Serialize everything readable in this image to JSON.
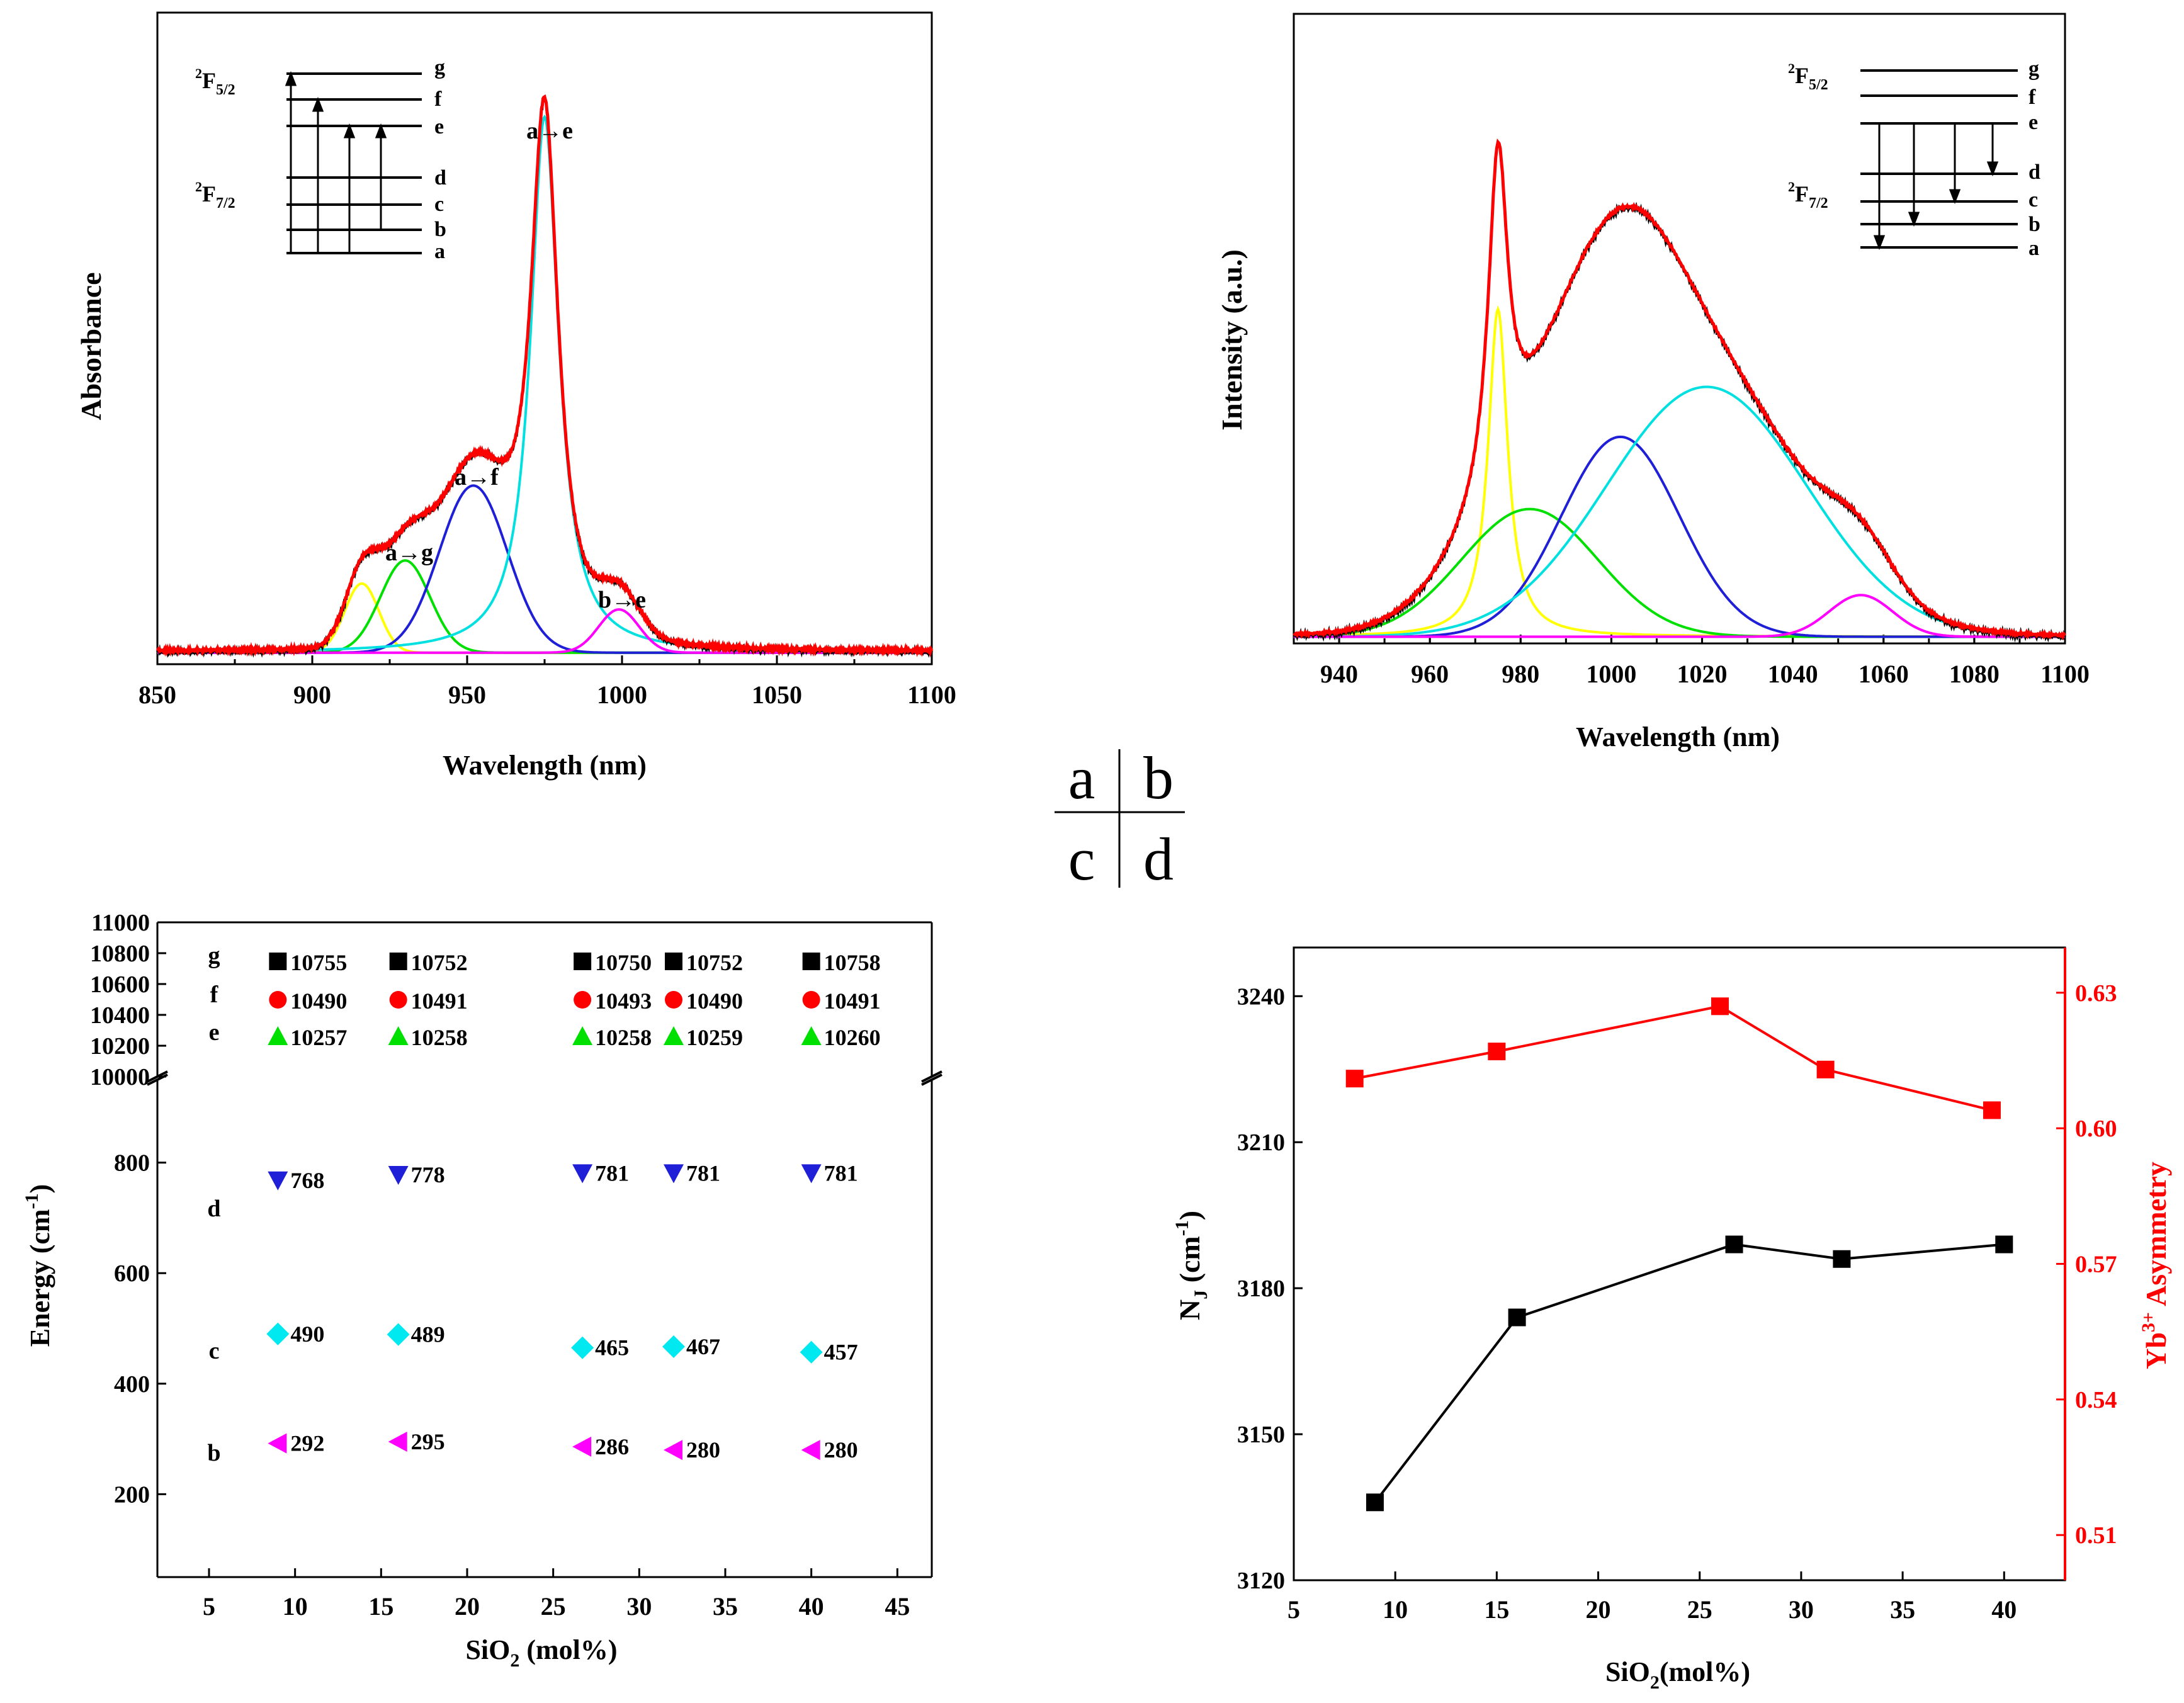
{
  "panel_key": {
    "a": "a",
    "b": "b",
    "c": "c",
    "d": "d"
  },
  "chart_data": [
    {
      "panel": "a",
      "type": "line",
      "xlabel": "Wavelength (nm)",
      "ylabel": "Absorbance",
      "xlim": [
        850,
        1100
      ],
      "ylim": [
        0,
        1
      ],
      "xticks": [
        850,
        900,
        950,
        1000,
        1050,
        1100
      ],
      "xtick_labels": [
        "850",
        "900",
        "950",
        "1000",
        "1050",
        "1100"
      ],
      "annotations": [
        "a→e",
        "a→f",
        "a→g",
        "b→e"
      ],
      "components": [
        {
          "name": "yellow",
          "color": "#ffff00",
          "type": "gauss",
          "center": 916,
          "width": 5.5,
          "height": 0.12
        },
        {
          "name": "green",
          "color": "#00e000",
          "type": "gauss",
          "center": 930,
          "width": 8,
          "height": 0.16
        },
        {
          "name": "blue",
          "color": "#1f1fd8",
          "type": "gauss",
          "center": 952,
          "width": 11,
          "height": 0.29
        },
        {
          "name": "cyan",
          "color": "#00e0e0",
          "type": "lorentz",
          "center": 975,
          "width": 5.5,
          "height": 0.93
        },
        {
          "name": "magenta",
          "color": "#ff00ff",
          "type": "gauss",
          "center": 999,
          "width": 6.5,
          "height": 0.075
        }
      ],
      "series": [
        {
          "name": "measured",
          "color": "#000000"
        },
        {
          "name": "fit",
          "color": "#ff0000"
        }
      ],
      "inset": {
        "upper_term": "2F5/2",
        "lower_term": "2F7/2",
        "levels": [
          "g",
          "f",
          "e",
          "d",
          "c",
          "b",
          "a"
        ],
        "transitions": [
          "a→g",
          "a→f",
          "a→e",
          "b→e"
        ]
      }
    },
    {
      "panel": "b",
      "type": "line",
      "xlabel": "Wavelength (nm)",
      "ylabel": "Intensity (a.u.)",
      "xlim": [
        930,
        1100
      ],
      "ylim": [
        0,
        1
      ],
      "xticks": [
        940,
        960,
        980,
        1000,
        1020,
        1040,
        1060,
        1080,
        1100
      ],
      "xtick_labels": [
        "940",
        "960",
        "980",
        "1000",
        "1020",
        "1040",
        "1060",
        "1080",
        "1100"
      ],
      "components": [
        {
          "name": "yellow",
          "color": "#ffff00",
          "type": "lorentz",
          "center": 975,
          "width": 2.6,
          "height": 0.59
        },
        {
          "name": "green",
          "color": "#00e000",
          "type": "gauss",
          "center": 982,
          "width": 15,
          "height": 0.23
        },
        {
          "name": "blue",
          "color": "#1f1fd8",
          "type": "gauss",
          "center": 1002,
          "width": 13,
          "height": 0.36
        },
        {
          "name": "cyan",
          "color": "#00e0e0",
          "type": "gauss",
          "center": 1021,
          "width": 22,
          "height": 0.45
        },
        {
          "name": "magenta",
          "color": "#ff00ff",
          "type": "gauss",
          "center": 1055,
          "width": 7,
          "height": 0.075
        }
      ],
      "series": [
        {
          "name": "measured",
          "color": "#000000"
        },
        {
          "name": "fit",
          "color": "#ff0000"
        }
      ],
      "inset": {
        "upper_term": "2F5/2",
        "lower_term": "2F7/2",
        "levels": [
          "g",
          "f",
          "e",
          "d",
          "c",
          "b",
          "a"
        ],
        "transitions": [
          "e→a",
          "e→b",
          "e→c",
          "e→d"
        ]
      }
    },
    {
      "panel": "c",
      "type": "scatter",
      "xlabel": "SiO2 (mol%)",
      "ylabel": "Energy (cm-1)",
      "xlim": [
        2,
        47
      ],
      "xticks": [
        5,
        10,
        15,
        20,
        25,
        30,
        35,
        40,
        45
      ],
      "xtick_labels": [
        "5",
        "10",
        "15",
        "20",
        "25",
        "30",
        "35",
        "40",
        "45"
      ],
      "upper_ylim": [
        10000,
        11000
      ],
      "upper_yticks": [
        "10000",
        "10200",
        "10400",
        "10600",
        "10800",
        "11000"
      ],
      "lower_ylim": [
        50,
        950
      ],
      "lower_yticks": [
        "200",
        "400",
        "600",
        "800"
      ],
      "x": [
        9,
        16,
        26.7,
        32,
        40
      ],
      "series": [
        {
          "level": "g",
          "marker": "square",
          "color": "#000000",
          "values": [
            10755,
            10752,
            10750,
            10752,
            10758
          ],
          "labels": [
            "10755",
            "10752",
            "10750",
            "10752",
            "10758"
          ]
        },
        {
          "level": "f",
          "marker": "circle",
          "color": "#ff0000",
          "values": [
            10490,
            10491,
            10493,
            10490,
            10491
          ],
          "labels": [
            "10490",
            "10491",
            "10493",
            "10490",
            "10491"
          ]
        },
        {
          "level": "e",
          "marker": "triangle-up",
          "color": "#00e000",
          "values": [
            10257,
            10258,
            10258,
            10259,
            10260
          ],
          "labels": [
            "10257",
            "10258",
            "10258",
            "10259",
            "10260"
          ]
        },
        {
          "level": "d",
          "marker": "triangle-down",
          "color": "#1f1fd8",
          "values": [
            768,
            778,
            781,
            781,
            781
          ],
          "labels": [
            "768",
            "778",
            "781",
            "781",
            "781"
          ]
        },
        {
          "level": "c",
          "marker": "diamond",
          "color": "#00e8f0",
          "values": [
            490,
            489,
            465,
            467,
            457
          ],
          "labels": [
            "490",
            "489",
            "465",
            "467",
            "457"
          ]
        },
        {
          "level": "b",
          "marker": "triangle-left",
          "color": "#ff00ff",
          "values": [
            292,
            295,
            286,
            280,
            280
          ],
          "labels": [
            "292",
            "295",
            "286",
            "280",
            "280"
          ]
        }
      ]
    },
    {
      "panel": "d",
      "type": "line",
      "xlabel": "SiO2 (mol%)",
      "ylabel_left": "NJ (cm-1)",
      "ylabel_right": "Yb3+ Asymmetry",
      "xlim": [
        5,
        43
      ],
      "xticks": [
        5,
        10,
        15,
        20,
        25,
        30,
        35,
        40
      ],
      "xtick_labels": [
        "5",
        "10",
        "15",
        "20",
        "25",
        "30",
        "35",
        "40"
      ],
      "ylim_left": [
        3120,
        3250
      ],
      "yticks_left": [
        "3120",
        "3150",
        "3180",
        "3210",
        "3240"
      ],
      "ylim_right": [
        0.5,
        0.64
      ],
      "yticks_right": [
        "0.51",
        "0.54",
        "0.57",
        "0.60",
        "0.63"
      ],
      "series": [
        {
          "name": "NJ",
          "axis": "left",
          "color": "#000000",
          "x": [
            9,
            16,
            26.7,
            32,
            40
          ],
          "y": [
            3136,
            3174,
            3189,
            3186,
            3189
          ]
        },
        {
          "name": "Yb3+ Asymmetry",
          "axis": "right",
          "color": "#ff0000",
          "x": [
            8,
            15,
            26,
            31.2,
            39.4
          ],
          "y": [
            0.611,
            0.617,
            0.627,
            0.613,
            0.604
          ]
        }
      ]
    }
  ]
}
